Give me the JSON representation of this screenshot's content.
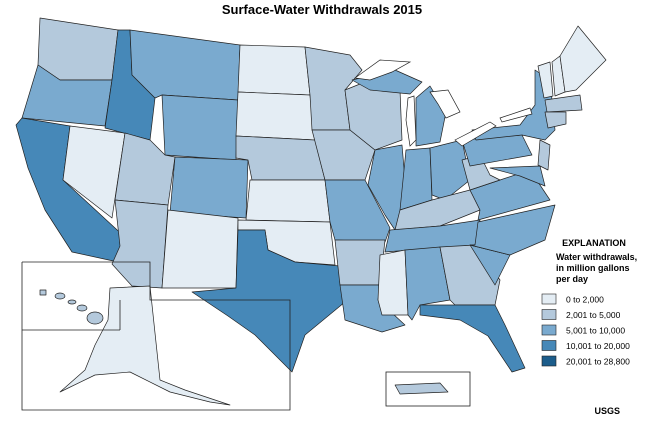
{
  "map": {
    "title": "Surface-Water Withdrawals 2015",
    "legend": {
      "heading": "EXPLANATION",
      "subheading_lines": [
        "Water withdrawals,",
        "in million gallons",
        "per day"
      ],
      "classes": [
        {
          "label": "0 to 2,000",
          "color": "#e4edf4"
        },
        {
          "label": "2,001 to 5,000",
          "color": "#b4c9dc"
        },
        {
          "label": "5,001 to 10,000",
          "color": "#7aaacf"
        },
        {
          "label": "10,001 to 20,000",
          "color": "#4688b8"
        },
        {
          "label": "20,001 to 28,800",
          "color": "#1c5d8b"
        }
      ]
    },
    "state_classes": [
      1,
      2,
      3,
      0,
      3,
      2,
      2,
      1,
      1,
      2,
      0,
      0,
      0,
      1,
      0,
      0,
      3,
      1,
      1,
      2,
      1,
      2,
      1,
      2,
      2,
      2,
      2,
      1,
      2,
      0,
      2,
      1,
      3,
      2,
      2,
      2,
      1,
      2,
      2,
      2,
      1,
      0,
      0,
      0,
      1,
      1,
      2,
      0,
      1,
      1
    ],
    "credit": "USGS"
  }
}
